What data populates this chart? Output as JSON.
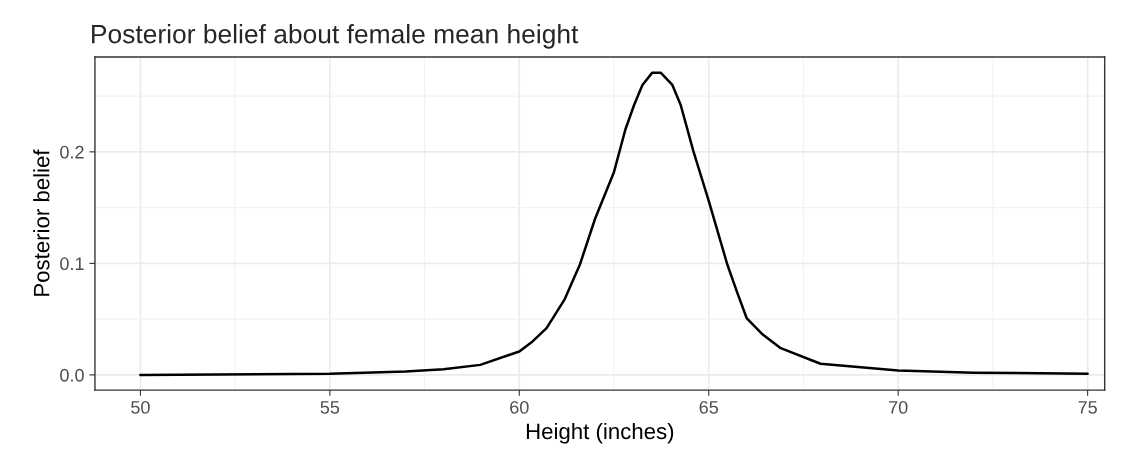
{
  "chart_data": {
    "type": "line",
    "title": "Posterior belief about female mean height",
    "xlabel": "Height (inches)",
    "ylabel": "Posterior belief",
    "series": [
      {
        "color": "#000000",
        "x": [
          50,
          55,
          57,
          58,
          58.97,
          60,
          60.35,
          60.72,
          61.2,
          61.6,
          62.0,
          62.5,
          62.8,
          63.03,
          63.25,
          63.51,
          63.73,
          64.04,
          64.26,
          64.6,
          65.0,
          65.49,
          65.75,
          66.0,
          66.4,
          66.9,
          67.95,
          70,
          72,
          75
        ],
        "values": [
          0.0,
          0.001,
          0.003,
          0.005,
          0.009,
          0.021,
          0.03,
          0.042,
          0.068,
          0.099,
          0.14,
          0.182,
          0.22,
          0.242,
          0.26,
          0.271,
          0.271,
          0.26,
          0.242,
          0.2,
          0.156,
          0.099,
          0.074,
          0.051,
          0.037,
          0.024,
          0.01,
          0.004,
          0.002,
          0.001
        ]
      }
    ],
    "xlim": [
      48.8,
      75.45
    ],
    "ylim": [
      -0.0136,
      0.285
    ],
    "xticks": [
      50,
      55,
      60,
      65,
      70,
      75
    ],
    "yticks": [
      {
        "value": 0,
        "label": "0.0"
      },
      0.1,
      0.2
    ],
    "grid": true
  }
}
